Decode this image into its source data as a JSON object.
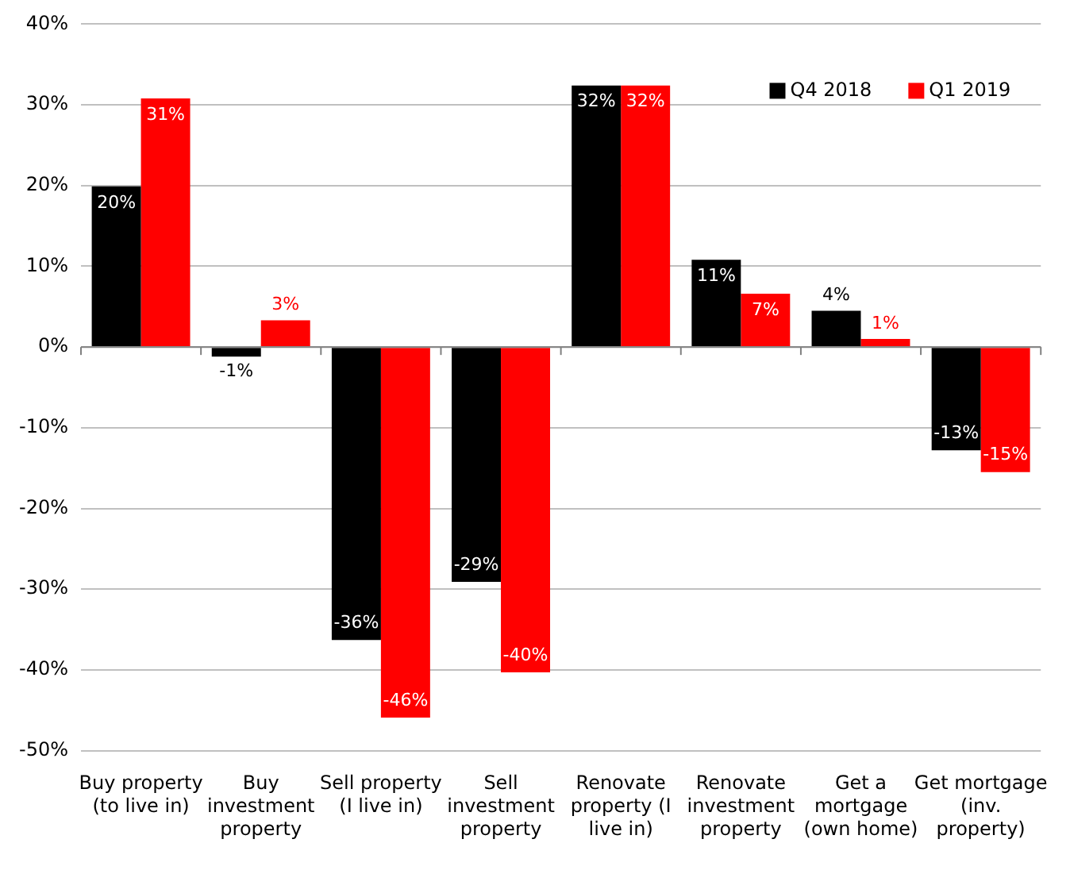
{
  "chart_data": {
    "type": "bar",
    "categories": [
      "Buy property\n(to live in)",
      "Buy\ninvestment\nproperty",
      "Sell property\n(I live in)",
      "Sell\ninvestment\nproperty",
      "Renovate\nproperty (I\nlive in)",
      "Renovate\ninvestment\nproperty",
      "Get a\nmortgage\n(own home)",
      "Get mortgage\n(inv.\nproperty)"
    ],
    "series": [
      {
        "name": "Q4 2018",
        "color": "#000000",
        "values": [
          19.9,
          -1.2,
          -36.3,
          -29.1,
          32.4,
          10.8,
          4.5,
          -12.8
        ],
        "value_labels": [
          "20%",
          "-1%",
          "-36%",
          "-29%",
          "32%",
          "11%",
          "4%",
          "-13%"
        ]
      },
      {
        "name": "Q1 2019",
        "color": "#ff0000",
        "values": [
          30.8,
          3.3,
          -45.9,
          -40.3,
          32.4,
          6.6,
          1.0,
          -15.5
        ],
        "value_labels": [
          "31%",
          "3%",
          "-46%",
          "-40%",
          "32%",
          "7%",
          "1%",
          "-15%"
        ]
      }
    ],
    "ylim": [
      -50,
      40
    ],
    "yticks": [
      {
        "value": -50,
        "label": "-50%"
      },
      {
        "value": -40,
        "label": "-40%"
      },
      {
        "value": -30,
        "label": "-30%"
      },
      {
        "value": -20,
        "label": "-20%"
      },
      {
        "value": -10,
        "label": "-10%"
      },
      {
        "value": 0,
        "label": "0%"
      },
      {
        "value": 10,
        "label": "10%"
      },
      {
        "value": 20,
        "label": "20%"
      },
      {
        "value": 30,
        "label": "30%"
      },
      {
        "value": 40,
        "label": "40%"
      }
    ],
    "grid": "y",
    "legend": "top right"
  }
}
